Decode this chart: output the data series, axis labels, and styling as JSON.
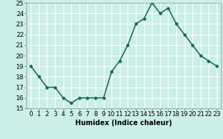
{
  "x": [
    0,
    1,
    2,
    3,
    4,
    5,
    6,
    7,
    8,
    9,
    10,
    11,
    12,
    13,
    14,
    15,
    16,
    17,
    18,
    19,
    20,
    21,
    22,
    23
  ],
  "y": [
    19,
    18,
    17,
    17,
    16,
    15.5,
    16,
    16,
    16,
    16,
    18.5,
    19.5,
    21,
    23,
    23.5,
    25,
    24,
    24.5,
    23,
    22,
    21,
    20,
    19.5,
    19
  ],
  "line_color": "#1a6b5a",
  "marker": "D",
  "marker_size": 2.5,
  "bg_color": "#cceee8",
  "grid_color": "#ffffff",
  "xlabel": "Humidex (Indice chaleur)",
  "ylim": [
    15,
    25
  ],
  "xlim": [
    -0.5,
    23.5
  ],
  "yticks": [
    15,
    16,
    17,
    18,
    19,
    20,
    21,
    22,
    23,
    24,
    25
  ],
  "xticks": [
    0,
    1,
    2,
    3,
    4,
    5,
    6,
    7,
    8,
    9,
    10,
    11,
    12,
    13,
    14,
    15,
    16,
    17,
    18,
    19,
    20,
    21,
    22,
    23
  ],
  "xlabel_fontsize": 7,
  "tick_fontsize": 6.5,
  "line_width": 1.2
}
